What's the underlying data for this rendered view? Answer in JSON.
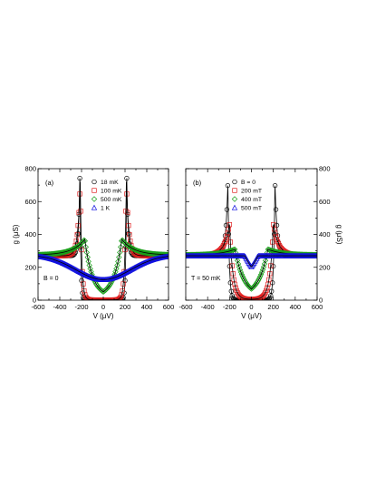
{
  "chart_data": [
    {
      "type": "scatter",
      "panel_label": "(a)",
      "annotation": "B = 0",
      "xlabel": "V (μV)",
      "ylabel": "g (μS)",
      "xlim": [
        -600,
        600
      ],
      "ylim": [
        0,
        800
      ],
      "xticks": [
        -600,
        -400,
        -200,
        0,
        200,
        400,
        600
      ],
      "yticks": [
        0,
        200,
        400,
        600,
        800
      ],
      "ytick_labels_side": "left",
      "legend_position": "top-right",
      "fit_lines": true,
      "series": [
        {
          "name": "18 mK",
          "marker": "circle",
          "color": "#000000",
          "delta": 215,
          "peak": 780,
          "width": 8,
          "tail": 270,
          "floor": 0
        },
        {
          "name": "100 mK",
          "marker": "square",
          "color": "#e02020",
          "delta": 212,
          "peak": 720,
          "width": 14,
          "tail": 270,
          "floor": 2
        },
        {
          "name": "500 mK",
          "marker": "diamond",
          "color": "#1aa01a",
          "delta": 170,
          "peak": 370,
          "width": 70,
          "tail": 275,
          "floor": 20
        },
        {
          "name": "1 K",
          "marker": "triangle",
          "color": "#1010e0",
          "delta": 0,
          "peak": 125,
          "width": 250,
          "tail": 275,
          "floor": 125
        }
      ]
    },
    {
      "type": "scatter",
      "panel_label": "(b)",
      "annotation": "T = 50 mK",
      "xlabel": "V (μV)",
      "ylabel": "g (μS)",
      "xlim": [
        -600,
        600
      ],
      "ylim": [
        0,
        800
      ],
      "xticks": [
        -600,
        -400,
        -200,
        0,
        200,
        400,
        600
      ],
      "yticks": [
        0,
        200,
        400,
        600,
        800
      ],
      "ytick_labels_side": "right",
      "legend_position": "top-center",
      "fit_lines": true,
      "series": [
        {
          "name": "B = 0",
          "marker": "circle",
          "color": "#000000",
          "delta": 215,
          "peak": 720,
          "width": 12,
          "tail": 270,
          "floor": 0
        },
        {
          "name": "200 mT",
          "marker": "square",
          "color": "#e02020",
          "delta": 200,
          "peak": 460,
          "width": 30,
          "tail": 275,
          "floor": 5
        },
        {
          "name": "400 mT",
          "marker": "diamond",
          "color": "#1aa01a",
          "delta": 150,
          "peak": 310,
          "width": 80,
          "tail": 275,
          "floor": 25
        },
        {
          "name": "500 mT",
          "marker": "triangle",
          "color": "#1010e0",
          "delta": 60,
          "peak": 270,
          "width": 140,
          "tail": 270,
          "floor": 75
        }
      ]
    }
  ]
}
